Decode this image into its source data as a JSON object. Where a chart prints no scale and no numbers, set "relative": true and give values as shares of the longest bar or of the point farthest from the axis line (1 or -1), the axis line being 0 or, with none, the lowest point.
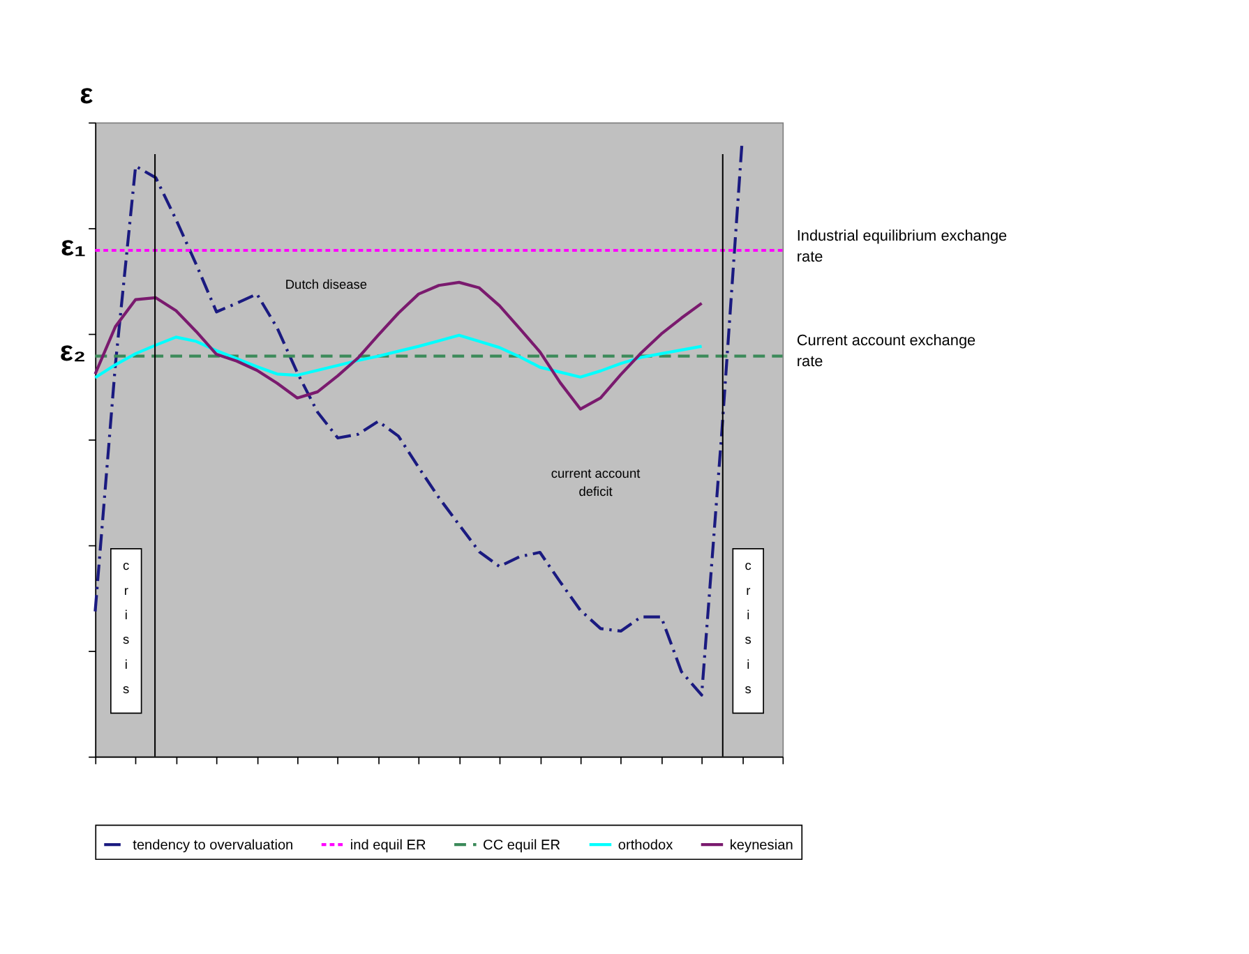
{
  "chart_data": {
    "type": "line",
    "relative": true,
    "ylabel": "ε",
    "legend": "bottom",
    "categories": [
      null,
      null,
      null,
      null,
      null,
      null,
      null,
      null,
      null,
      null,
      null,
      null,
      null,
      null,
      null,
      null,
      null,
      null,
      null,
      null,
      null,
      null,
      null,
      null,
      null,
      null,
      null,
      null,
      null,
      null,
      null,
      null,
      null,
      null,
      null
    ],
    "series": [
      {
        "name": "tendency to overvaluation",
        "color": "#1a1a80",
        "line_style": "dashdot",
        "values": [
          0.236,
          0.637,
          0.96,
          0.941,
          0.873,
          0.8,
          0.723,
          0.737,
          0.752,
          0.697,
          0.624,
          0.56,
          0.518,
          0.524,
          0.545,
          0.521,
          0.47,
          0.421,
          0.377,
          0.333,
          0.309,
          0.325,
          0.332,
          0.284,
          0.238,
          0.208,
          0.204,
          0.227,
          0.227,
          0.138,
          0.1,
          0.529,
          1.0,
          null,
          null
        ]
      },
      {
        "name": "ind equil ER",
        "color": "#ff00ff",
        "line_style": "dotted",
        "values": [
          0.823,
          0.823,
          0.823,
          0.823,
          0.823,
          0.823,
          0.823,
          0.823,
          0.823,
          0.823,
          0.823,
          0.823,
          0.823,
          0.823,
          0.823,
          0.823,
          0.823,
          0.823,
          0.823,
          0.823,
          0.823,
          0.823,
          0.823,
          0.823,
          0.823,
          0.823,
          0.823,
          0.823,
          0.823,
          0.823,
          0.823,
          0.823,
          0.823,
          0.823,
          0.823
        ]
      },
      {
        "name": "CC equil ER",
        "color": "#3c8a5a",
        "line_style": "dashed",
        "values": [
          0.651,
          0.651,
          0.651,
          0.651,
          0.651,
          0.651,
          0.651,
          0.651,
          0.651,
          0.651,
          0.651,
          0.651,
          0.651,
          0.651,
          0.651,
          0.651,
          0.651,
          0.651,
          0.651,
          0.651,
          0.651,
          0.651,
          0.651,
          0.651,
          0.651,
          0.651,
          0.651,
          0.651,
          0.651,
          0.651,
          0.651,
          0.651,
          0.651,
          0.651,
          0.651
        ]
      },
      {
        "name": "orthodox",
        "color": "#00ffff",
        "line_style": "solid",
        "values": [
          0.616,
          0.637,
          0.655,
          0.669,
          0.682,
          0.675,
          0.66,
          0.647,
          0.634,
          0.622,
          0.62,
          0.628,
          0.636,
          0.644,
          0.651,
          0.659,
          0.667,
          0.676,
          0.685,
          0.675,
          0.665,
          0.65,
          0.633,
          0.625,
          0.617,
          0.627,
          0.639,
          0.649,
          0.655,
          0.661,
          0.667,
          null,
          null,
          null,
          null
        ]
      },
      {
        "name": "keynesian",
        "color": "#7a1a6e",
        "line_style": "solid",
        "values": [
          0.622,
          0.699,
          0.743,
          0.746,
          0.725,
          0.691,
          0.654,
          0.643,
          0.628,
          0.607,
          0.583,
          0.593,
          0.619,
          0.648,
          0.685,
          0.721,
          0.752,
          0.766,
          0.771,
          0.762,
          0.733,
          0.696,
          0.658,
          0.608,
          0.565,
          0.583,
          0.621,
          0.656,
          0.687,
          0.713,
          0.737,
          null,
          null,
          null,
          null
        ]
      }
    ],
    "annotations": [
      "ε₁",
      "ε₂",
      "Industrial equilibrium exchange rate",
      "Current account exchange rate",
      "Dutch disease",
      "current account deficit",
      "crisis",
      "crisis"
    ]
  }
}
